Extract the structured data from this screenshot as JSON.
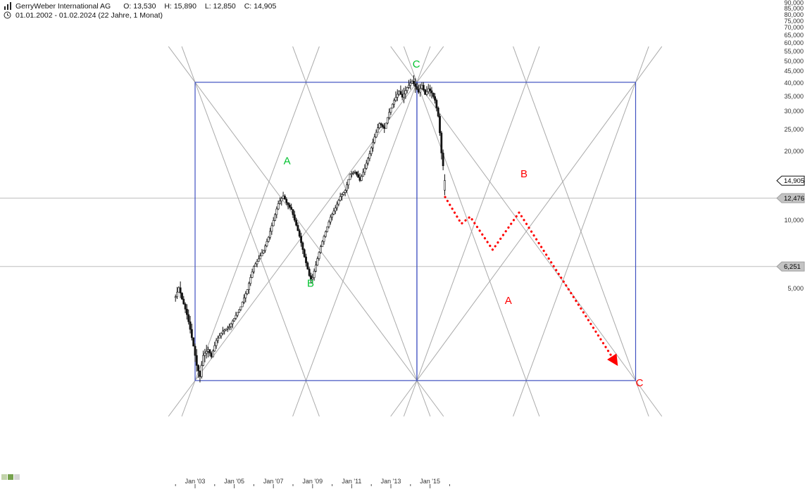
{
  "header": {
    "instrument": "GerryWeber International AG",
    "ohlc": {
      "o_label": "O:",
      "o_value": "13,530",
      "h_label": "H:",
      "h_value": "15,890",
      "l_label": "L:",
      "l_value": "12,850",
      "c_label": "C:",
      "c_value": "14,905"
    },
    "range_text": "01.01.2002 - 01.02.2024 (22 Jahre, 1 Monat)"
  },
  "axes": {
    "y_ticks": [
      {
        "label": "90,000",
        "value": 90000
      },
      {
        "label": "85,000",
        "value": 85000
      },
      {
        "label": "80,000",
        "value": 80000
      },
      {
        "label": "75,000",
        "value": 75000
      },
      {
        "label": "70,000",
        "value": 70000
      },
      {
        "label": "65,000",
        "value": 65000
      },
      {
        "label": "60,000",
        "value": 60000
      },
      {
        "label": "55,000",
        "value": 55000
      },
      {
        "label": "50,000",
        "value": 50000
      },
      {
        "label": "45,000",
        "value": 45000
      },
      {
        "label": "40,000",
        "value": 40000
      },
      {
        "label": "35,000",
        "value": 35000
      },
      {
        "label": "30,000",
        "value": 30000
      },
      {
        "label": "25,000",
        "value": 25000
      },
      {
        "label": "20,000",
        "value": 20000
      },
      {
        "label": "10,000",
        "value": 10000
      },
      {
        "label": "5,000",
        "value": 5000
      }
    ],
    "x_ticks": [
      {
        "label": "Jan '03",
        "year": 2003
      },
      {
        "label": "Jan '05",
        "year": 2005
      },
      {
        "label": "Jan '07",
        "year": 2007
      },
      {
        "label": "Jan '09",
        "year": 2009
      },
      {
        "label": "Jan '11",
        "year": 2011
      },
      {
        "label": "Jan '13",
        "year": 2013
      },
      {
        "label": "Jan '15",
        "year": 2015
      }
    ],
    "minor_tick_year_start": 2002,
    "minor_tick_year_end": 2016
  },
  "price_tags": [
    {
      "label": "14,905",
      "value": 14905,
      "kind": "current"
    },
    {
      "label": "12,476",
      "value": 12476,
      "kind": "level"
    },
    {
      "label": "6,251",
      "value": 6251,
      "kind": "level"
    }
  ],
  "watermark": {
    "colors": [
      "#c2d3ab",
      "#76a24e",
      "#d6d6d6"
    ]
  },
  "colors": {
    "box": "#3f51c1",
    "fan": "#9c9c9c",
    "candle": "#111111",
    "level_line": "#bdbdbd",
    "projection": "#ff0000",
    "wave_green": "#00c22e",
    "wave_red": "#ff0000",
    "axis_text": "#333333"
  },
  "chart_data": {
    "type": "candlestick",
    "title": "GerryWeber International AG",
    "timeframe": "1 Monat",
    "y_scale": "log",
    "x_tick_labels": [
      "Jan '03",
      "Jan '05",
      "Jan '07",
      "Jan '09",
      "Jan '11",
      "Jan '13",
      "Jan '15"
    ],
    "y_tick_values": [
      90000,
      85000,
      80000,
      75000,
      70000,
      65000,
      60000,
      55000,
      50000,
      45000,
      40000,
      35000,
      30000,
      25000,
      20000,
      10000,
      5000
    ],
    "last_bar": {
      "open": 13530,
      "high": 15890,
      "low": 12850,
      "close": 14905
    },
    "current_price": 14905,
    "bars_start_year": 2002.0,
    "bars_end_year": 2015.75,
    "monthly_close_anchors": [
      [
        2002.0,
        4600
      ],
      [
        2002.17,
        5050
      ],
      [
        2002.33,
        4500
      ],
      [
        2002.58,
        3850
      ],
      [
        2002.83,
        3050
      ],
      [
        2003.08,
        2300
      ],
      [
        2003.25,
        2050
      ],
      [
        2003.42,
        2550
      ],
      [
        2003.67,
        2700
      ],
      [
        2003.83,
        2500
      ],
      [
        2004.08,
        2950
      ],
      [
        2004.42,
        3250
      ],
      [
        2004.75,
        3400
      ],
      [
        2005.0,
        3700
      ],
      [
        2005.33,
        4150
      ],
      [
        2005.67,
        4950
      ],
      [
        2006.0,
        6250
      ],
      [
        2006.25,
        6750
      ],
      [
        2006.5,
        7350
      ],
      [
        2006.75,
        8400
      ],
      [
        2007.0,
        9950
      ],
      [
        2007.25,
        11800
      ],
      [
        2007.5,
        12750
      ],
      [
        2007.67,
        11900
      ],
      [
        2007.92,
        11100
      ],
      [
        2008.08,
        10000
      ],
      [
        2008.33,
        8500
      ],
      [
        2008.58,
        6900
      ],
      [
        2008.83,
        5700
      ],
      [
        2008.96,
        5400
      ],
      [
        2009.17,
        6350
      ],
      [
        2009.42,
        7650
      ],
      [
        2009.67,
        8900
      ],
      [
        2009.92,
        10300
      ],
      [
        2010.17,
        11300
      ],
      [
        2010.42,
        12700
      ],
      [
        2010.67,
        13500
      ],
      [
        2010.92,
        15900
      ],
      [
        2011.17,
        16300
      ],
      [
        2011.42,
        14900
      ],
      [
        2011.67,
        16900
      ],
      [
        2011.92,
        19600
      ],
      [
        2012.17,
        23200
      ],
      [
        2012.42,
        26600
      ],
      [
        2012.67,
        25200
      ],
      [
        2012.92,
        29800
      ],
      [
        2013.17,
        33600
      ],
      [
        2013.42,
        36800
      ],
      [
        2013.58,
        34600
      ],
      [
        2013.83,
        38200
      ],
      [
        2014.08,
        40800
      ],
      [
        2014.25,
        38600
      ],
      [
        2014.42,
        36400
      ],
      [
        2014.58,
        39200
      ],
      [
        2014.75,
        35600
      ],
      [
        2014.92,
        37800
      ],
      [
        2015.08,
        36200
      ],
      [
        2015.25,
        33600
      ],
      [
        2015.42,
        28500
      ],
      [
        2015.58,
        19800
      ],
      [
        2015.75,
        14905
      ]
    ],
    "horizontal_levels": [
      12476,
      6251
    ],
    "gann_boxes": [
      {
        "x1": 2003.0,
        "x2": 2014.33,
        "top": 40300,
        "bottom": 1970
      },
      {
        "x1": 2014.33,
        "x2": 2025.5,
        "top": 40300,
        "bottom": 1970
      }
    ],
    "wave_labels": [
      {
        "text": "A",
        "color": "green",
        "year": 2007.7,
        "price": 17600
      },
      {
        "text": "B",
        "color": "green",
        "year": 2008.9,
        "price": 5100
      },
      {
        "text": "C",
        "color": "green",
        "year": 2014.3,
        "price": 46800
      },
      {
        "text": "A",
        "color": "red",
        "year": 2019.0,
        "price": 4280
      },
      {
        "text": "B",
        "color": "red",
        "year": 2019.8,
        "price": 15400
      },
      {
        "text": "C",
        "color": "red",
        "year": 2025.7,
        "price": 1860
      }
    ],
    "projection_path": [
      [
        2015.77,
        12620
      ],
      [
        2016.6,
        9630
      ],
      [
        2017.05,
        10340
      ],
      [
        2018.2,
        7400
      ],
      [
        2019.55,
        10790
      ],
      [
        2024.5,
        2350
      ]
    ]
  }
}
